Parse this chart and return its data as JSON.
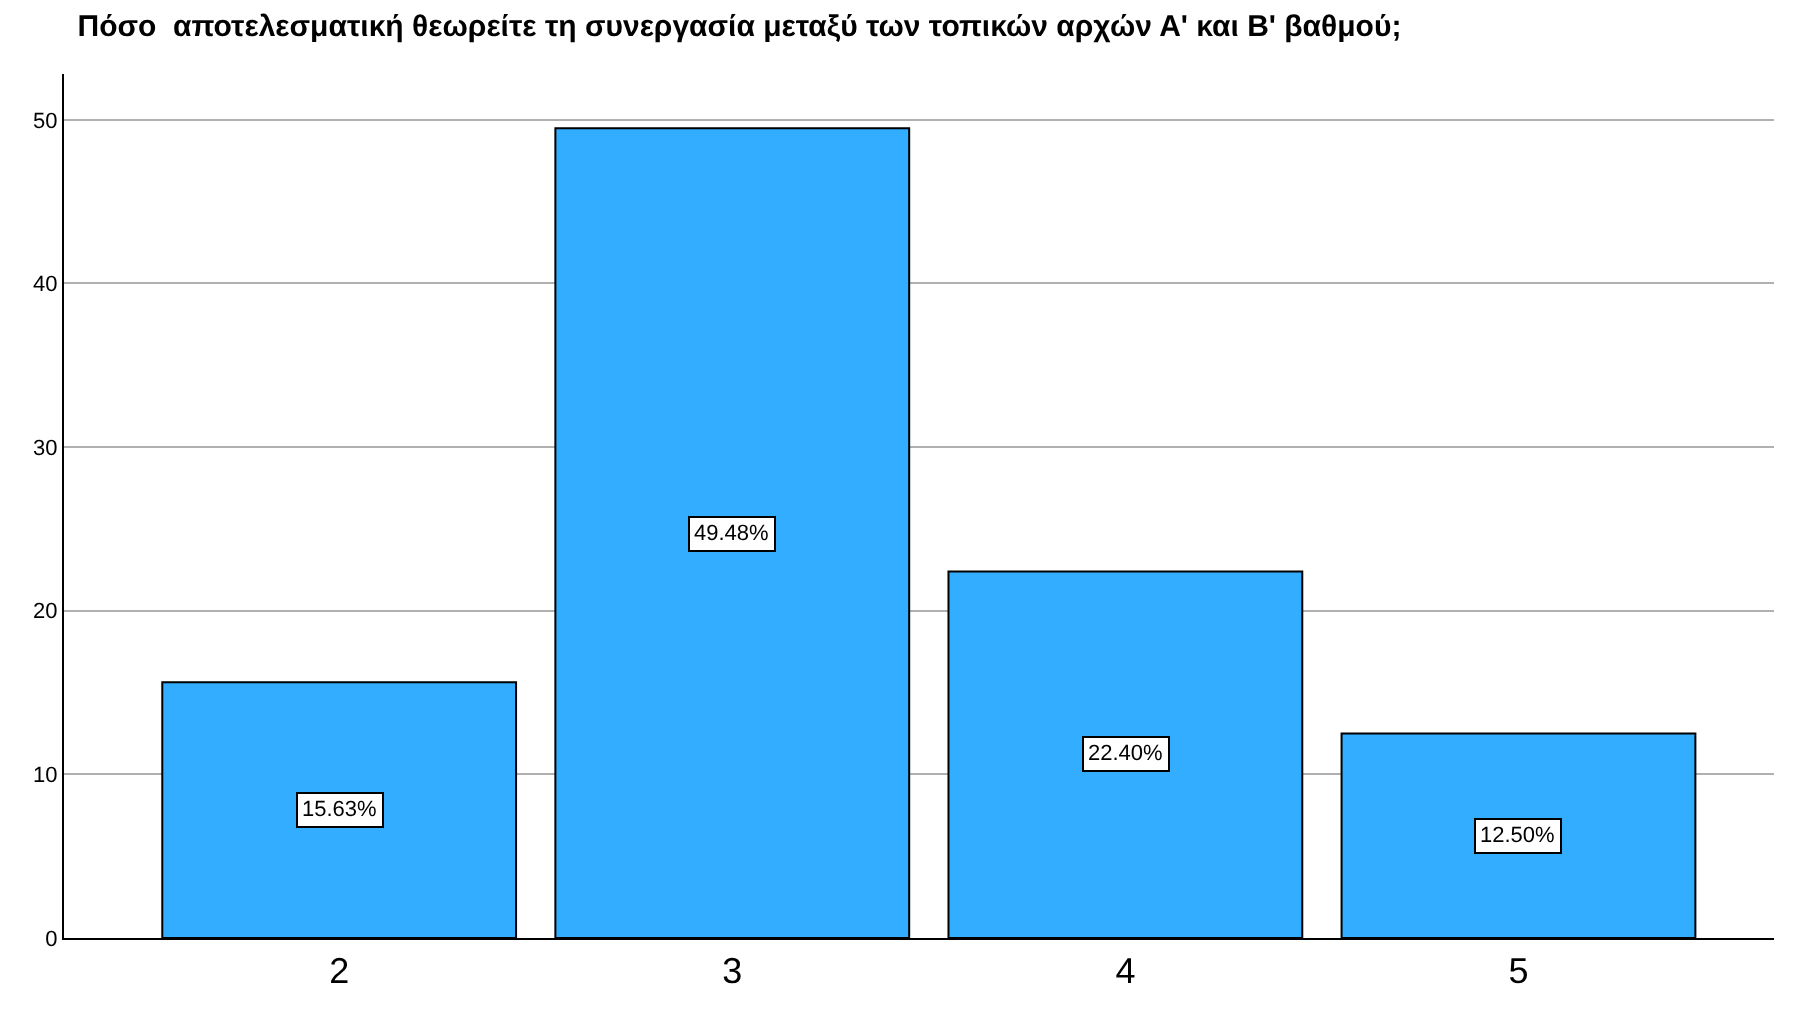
{
  "chart_data": {
    "type": "bar",
    "title": "Πόσο  αποτελεσματική θεωρείτε τη συνεργασία μεταξύ των τοπικών αρχών Α' και Β' βαθμού;",
    "categories": [
      "2",
      "3",
      "4",
      "5"
    ],
    "values": [
      15.63,
      49.48,
      22.4,
      12.5
    ],
    "value_labels": [
      "15.63%",
      "49.48%",
      "22.40%",
      "12.50%"
    ],
    "color": "#33adff",
    "ylim": [
      0,
      52.8
    ],
    "yticks": [
      0,
      10,
      20,
      30,
      40,
      50
    ],
    "grid": "y"
  }
}
